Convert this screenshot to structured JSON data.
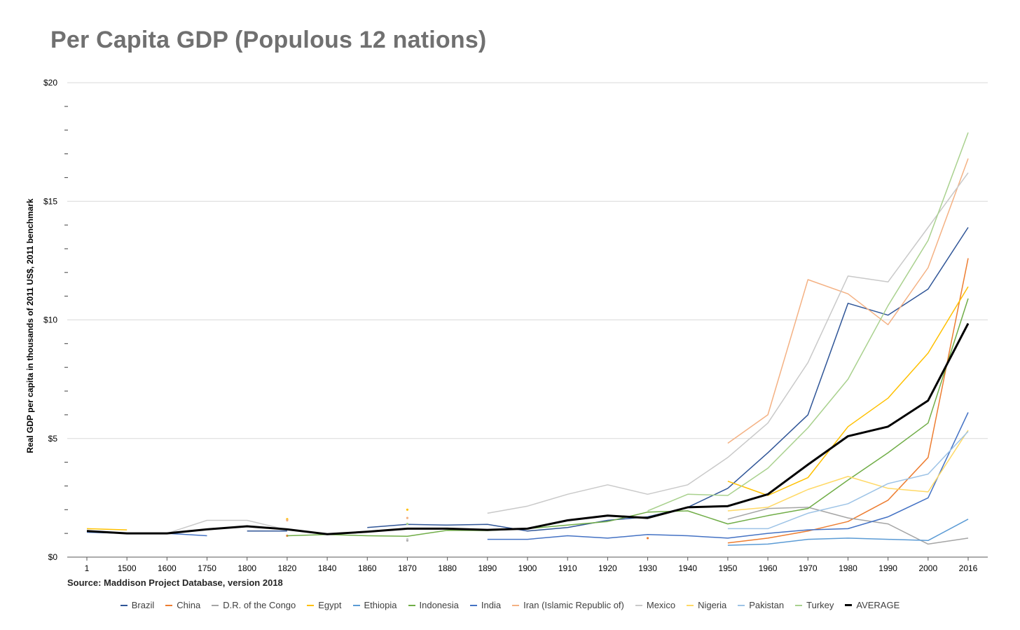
{
  "chart_data": {
    "type": "line",
    "title": "Per Capita GDP (Populous 12 nations)",
    "xlabel": "",
    "ylabel": "Real GDP per capita in thousands of 2011 US$, 2011 benchmark",
    "ylim": [
      0,
      20
    ],
    "y_ticks": [
      "$0",
      "$5",
      "$10",
      "$15",
      "$20"
    ],
    "grid": "horizontal",
    "legend_position": "bottom",
    "source": "Source: Maddison Project Database, version 2018",
    "categories": [
      "1",
      "1500",
      "1600",
      "1750",
      "1800",
      "1820",
      "1840",
      "1860",
      "1870",
      "1880",
      "1890",
      "1900",
      "1910",
      "1920",
      "1930",
      "1940",
      "1950",
      "1960",
      "1970",
      "1980",
      "1990",
      "2000",
      "2016"
    ],
    "series": [
      {
        "name": "Brazil",
        "color": "#2f5597",
        "values": [
          null,
          null,
          null,
          null,
          1.1,
          1.1,
          null,
          1.25,
          1.38,
          1.35,
          1.38,
          1.1,
          1.25,
          1.55,
          1.7,
          2.1,
          2.9,
          4.4,
          6.0,
          10.7,
          10.2,
          11.3,
          13.9
        ]
      },
      {
        "name": "China",
        "color": "#ed7d31",
        "values": [
          null,
          null,
          null,
          null,
          null,
          0.9,
          null,
          null,
          null,
          null,
          null,
          null,
          null,
          null,
          0.8,
          null,
          0.6,
          0.8,
          1.1,
          1.5,
          2.4,
          4.2,
          12.6
        ]
      },
      {
        "name": "D.R. of the Congo",
        "color": "#a5a5a5",
        "values": [
          null,
          null,
          null,
          null,
          null,
          null,
          null,
          null,
          0.7,
          null,
          null,
          null,
          null,
          null,
          null,
          null,
          1.6,
          2.05,
          2.1,
          1.65,
          1.4,
          0.55,
          0.8
        ]
      },
      {
        "name": "Egypt",
        "color": "#ffc000",
        "values": [
          1.2,
          1.15,
          null,
          null,
          null,
          1.6,
          null,
          null,
          2.0,
          null,
          null,
          null,
          null,
          null,
          null,
          null,
          3.2,
          2.6,
          3.35,
          5.5,
          6.7,
          8.6,
          11.4
        ]
      },
      {
        "name": "Ethiopia",
        "color": "#5b9bd5",
        "values": [
          null,
          null,
          null,
          null,
          null,
          null,
          null,
          null,
          null,
          null,
          null,
          null,
          null,
          null,
          null,
          null,
          0.5,
          0.55,
          0.75,
          0.8,
          0.75,
          0.7,
          1.6
        ]
      },
      {
        "name": "Indonesia",
        "color": "#70ad47",
        "values": [
          null,
          null,
          null,
          null,
          null,
          0.9,
          0.95,
          0.9,
          0.88,
          1.13,
          1.12,
          1.2,
          1.35,
          1.5,
          1.9,
          1.95,
          1.4,
          1.75,
          2.05,
          3.25,
          4.4,
          5.65,
          10.9
        ]
      },
      {
        "name": "India",
        "color": "#4472c4",
        "values": [
          1.05,
          1.0,
          1.0,
          0.9,
          null,
          null,
          null,
          null,
          null,
          null,
          0.75,
          0.75,
          0.9,
          0.8,
          0.95,
          0.9,
          0.8,
          1.0,
          1.15,
          1.2,
          1.7,
          2.5,
          6.1
        ]
      },
      {
        "name": "Iran (Islamic Republic of)",
        "color": "#f4b183",
        "values": [
          null,
          null,
          null,
          null,
          null,
          1.55,
          null,
          null,
          1.65,
          null,
          null,
          null,
          null,
          null,
          null,
          null,
          4.8,
          6.0,
          11.7,
          11.1,
          9.8,
          12.2,
          16.8
        ]
      },
      {
        "name": "Mexico",
        "color": "#c9c9c9",
        "values": [
          null,
          null,
          1.0,
          1.55,
          1.55,
          1.15,
          null,
          null,
          0.75,
          null,
          1.85,
          2.15,
          2.65,
          3.05,
          2.65,
          3.05,
          4.2,
          5.65,
          8.2,
          11.85,
          11.6,
          13.9,
          16.2
        ]
      },
      {
        "name": "Nigeria",
        "color": "#ffd966",
        "values": [
          null,
          null,
          null,
          null,
          null,
          null,
          null,
          null,
          null,
          null,
          null,
          null,
          null,
          null,
          null,
          null,
          1.95,
          2.1,
          2.85,
          3.4,
          2.9,
          2.75,
          5.35
        ]
      },
      {
        "name": "Pakistan",
        "color": "#9dc3e6",
        "values": [
          null,
          null,
          null,
          null,
          null,
          null,
          null,
          null,
          null,
          null,
          null,
          null,
          null,
          null,
          null,
          null,
          1.2,
          1.2,
          1.85,
          2.25,
          3.1,
          3.5,
          5.3
        ]
      },
      {
        "name": "Turkey",
        "color": "#a9d18e",
        "values": [
          null,
          null,
          null,
          null,
          null,
          null,
          null,
          null,
          1.4,
          null,
          null,
          null,
          null,
          null,
          1.95,
          2.65,
          2.6,
          3.75,
          5.45,
          7.5,
          10.6,
          13.35,
          17.9
        ]
      },
      {
        "name": "AVERAGE",
        "color": "#000000",
        "values": [
          1.1,
          1.0,
          1.0,
          1.17,
          1.3,
          1.17,
          0.97,
          1.07,
          1.2,
          1.2,
          1.15,
          1.2,
          1.55,
          1.75,
          1.65,
          2.1,
          2.15,
          2.65,
          3.9,
          5.1,
          5.5,
          6.6,
          9.85
        ]
      }
    ]
  }
}
